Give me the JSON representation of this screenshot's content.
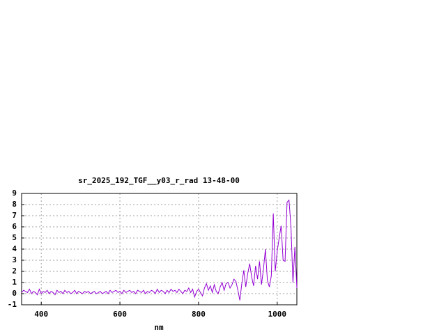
{
  "chart_data": {
    "type": "line",
    "title": "sr_2025_192_TGF__y03_r_rad 13-48-00",
    "x_label": "nm",
    "x": [
      350,
      355,
      360,
      365,
      370,
      375,
      380,
      385,
      390,
      395,
      400,
      405,
      410,
      415,
      420,
      425,
      430,
      435,
      440,
      445,
      450,
      455,
      460,
      465,
      470,
      475,
      480,
      485,
      490,
      495,
      500,
      505,
      510,
      515,
      520,
      525,
      530,
      535,
      540,
      545,
      550,
      555,
      560,
      565,
      570,
      575,
      580,
      585,
      590,
      595,
      600,
      605,
      610,
      615,
      620,
      625,
      630,
      635,
      640,
      645,
      650,
      655,
      660,
      665,
      670,
      675,
      680,
      685,
      690,
      695,
      700,
      705,
      710,
      715,
      720,
      725,
      730,
      735,
      740,
      745,
      750,
      755,
      760,
      765,
      770,
      775,
      780,
      785,
      790,
      795,
      800,
      805,
      810,
      815,
      820,
      825,
      830,
      835,
      840,
      845,
      850,
      855,
      860,
      865,
      870,
      875,
      880,
      885,
      890,
      895,
      900,
      905,
      910,
      915,
      920,
      925,
      930,
      935,
      940,
      945,
      950,
      955,
      960,
      965,
      970,
      975,
      980,
      985,
      990,
      995,
      1000,
      1005,
      1010,
      1015,
      1020,
      1025,
      1030,
      1035,
      1040,
      1045,
      1050
    ],
    "series": [
      {
        "color": "#9400d3",
        "values": [
          0.1,
          0.3,
          0.2,
          0.1,
          0.4,
          0.0,
          0.2,
          0.1,
          -0.1,
          0.4,
          0.0,
          0.2,
          0.1,
          0.3,
          0.0,
          0.2,
          0.1,
          -0.1,
          0.3,
          0.1,
          0.2,
          0.0,
          0.3,
          0.1,
          0.2,
          0.0,
          0.1,
          0.3,
          0.0,
          0.2,
          0.1,
          0.0,
          0.2,
          0.1,
          0.2,
          0.0,
          0.1,
          0.2,
          0.0,
          0.1,
          0.2,
          0.0,
          0.1,
          0.2,
          0.0,
          0.3,
          0.1,
          0.2,
          0.3,
          0.1,
          0.2,
          0.0,
          0.3,
          0.1,
          0.2,
          0.3,
          0.1,
          0.2,
          0.0,
          0.3,
          0.2,
          0.1,
          0.3,
          0.0,
          0.2,
          0.1,
          0.3,
          0.2,
          0.0,
          0.4,
          0.1,
          0.3,
          0.2,
          0.0,
          0.3,
          0.1,
          0.4,
          0.2,
          0.3,
          0.1,
          0.4,
          0.2,
          0.0,
          0.3,
          0.2,
          0.5,
          0.1,
          0.4,
          -0.3,
          0.2,
          0.4,
          0.1,
          -0.2,
          0.5,
          0.9,
          0.3,
          0.7,
          0.1,
          0.8,
          0.2,
          0.0,
          0.6,
          1.0,
          0.3,
          0.9,
          1.0,
          0.5,
          0.8,
          1.3,
          1.1,
          0.3,
          -0.6,
          0.9,
          2.1,
          0.6,
          1.8,
          2.7,
          1.5,
          0.7,
          2.5,
          1.3,
          2.9,
          0.8,
          2.2,
          4.0,
          1.2,
          0.6,
          1.6,
          7.2,
          2.0,
          3.8,
          5.0,
          6.1,
          3.0,
          2.9,
          8.2,
          8.4,
          6.0,
          1.0,
          4.2,
          0.5
        ]
      }
    ],
    "xlim": [
      350,
      1050
    ],
    "ylim": [
      -1,
      9
    ],
    "xticks": [
      400,
      600,
      800,
      1000
    ],
    "yticks": [
      -1,
      0,
      1,
      2,
      3,
      4,
      5,
      6,
      7,
      8,
      9
    ],
    "grid": true
  }
}
